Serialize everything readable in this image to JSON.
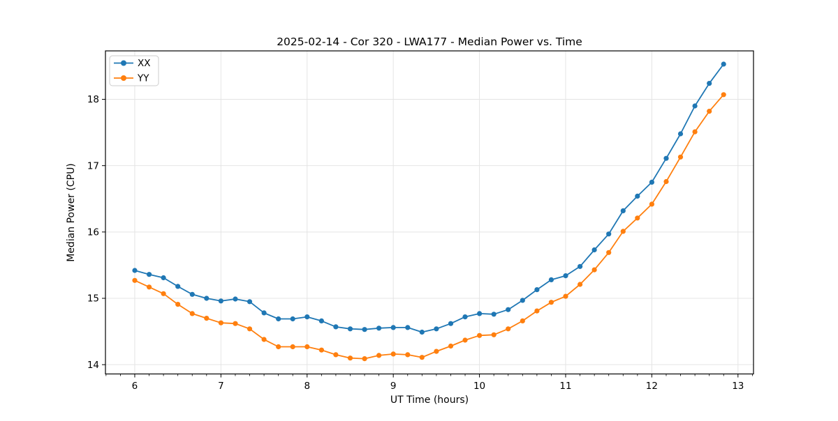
{
  "chart_data": {
    "type": "line",
    "title": "2025-02-14 - Cor 320 - LWA177 - Median Power vs. Time",
    "xlabel": "UT Time (hours)",
    "ylabel": "Median Power (CPU)",
    "xlim": [
      5.66,
      13.18
    ],
    "ylim": [
      13.86,
      18.73
    ],
    "xticks": [
      6,
      7,
      8,
      9,
      10,
      11,
      12,
      13
    ],
    "yticks": [
      14,
      15,
      16,
      17,
      18
    ],
    "x_minor_step": 0.16667,
    "grid": true,
    "legend_position": "upper-left",
    "marker": "circle",
    "x": [
      6.0,
      6.167,
      6.333,
      6.5,
      6.667,
      6.833,
      7.0,
      7.167,
      7.333,
      7.5,
      7.667,
      7.833,
      8.0,
      8.167,
      8.333,
      8.5,
      8.667,
      8.833,
      9.0,
      9.167,
      9.333,
      9.5,
      9.667,
      9.833,
      10.0,
      10.167,
      10.333,
      10.5,
      10.667,
      10.833,
      11.0,
      11.167,
      11.333,
      11.5,
      11.667,
      11.833,
      12.0,
      12.167,
      12.333,
      12.5,
      12.667,
      12.833
    ],
    "series": [
      {
        "name": "XX",
        "color": "#1f77b4",
        "values": [
          15.42,
          15.36,
          15.31,
          15.18,
          15.06,
          15.0,
          14.96,
          14.99,
          14.95,
          14.78,
          14.69,
          14.69,
          14.72,
          14.66,
          14.57,
          14.54,
          14.53,
          14.55,
          14.56,
          14.56,
          14.49,
          14.54,
          14.62,
          14.72,
          14.77,
          14.76,
          14.83,
          14.97,
          15.13,
          15.28,
          15.34,
          15.48,
          15.73,
          15.97,
          16.32,
          16.54,
          16.75,
          17.11,
          17.48,
          17.9,
          18.24,
          18.53
        ]
      },
      {
        "name": "YY",
        "color": "#ff7f0e",
        "values": [
          15.27,
          15.17,
          15.07,
          14.91,
          14.77,
          14.7,
          14.63,
          14.62,
          14.54,
          14.38,
          14.27,
          14.27,
          14.27,
          14.22,
          14.15,
          14.1,
          14.09,
          14.14,
          14.16,
          14.15,
          14.11,
          14.2,
          14.28,
          14.37,
          14.44,
          14.45,
          14.54,
          14.66,
          14.81,
          14.94,
          15.03,
          15.21,
          15.43,
          15.69,
          16.01,
          16.21,
          16.42,
          16.76,
          17.13,
          17.51,
          17.82,
          18.07
        ]
      }
    ],
    "colors": {
      "background": "#ffffff",
      "grid": "#e4e4e4",
      "spine": "#000000",
      "tick": "#000000"
    }
  }
}
